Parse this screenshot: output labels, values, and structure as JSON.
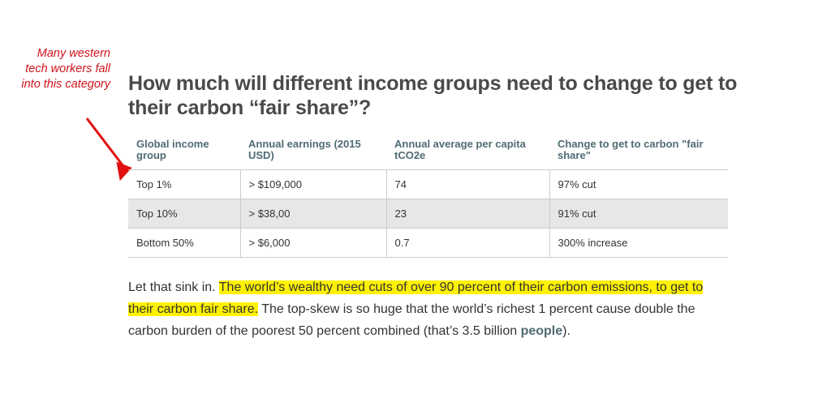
{
  "annotation": {
    "text": "Many western tech workers fall into this category",
    "color": "#d0121b"
  },
  "title": "How much will different income groups need to change to get to their carbon “fair share”?",
  "table": {
    "headers": [
      "Global income group",
      "Annual earnings (2015 USD)",
      "Annual average per capita tCO2e",
      "Change to get to carbon \"fair share\""
    ],
    "rows": [
      [
        "Top 1%",
        "> $109,000",
        "74",
        "97% cut"
      ],
      [
        "Top 10%",
        "> $38,00",
        "23",
        "91% cut"
      ],
      [
        "Bottom 50%",
        "> $6,000",
        "0.7",
        "300% increase"
      ]
    ]
  },
  "paragraph": {
    "intro": "Let that sink in. ",
    "highlight": "The world’s wealthy need cuts of over 90 percent of their carbon emissions, to get to their carbon fair share.",
    "rest": " The top-skew is so huge that the world’s richest 1 percent cause double the carbon burden of the poorest 50 percent combined (that’s 3.5 billion ",
    "link": "people",
    "end": ")."
  }
}
